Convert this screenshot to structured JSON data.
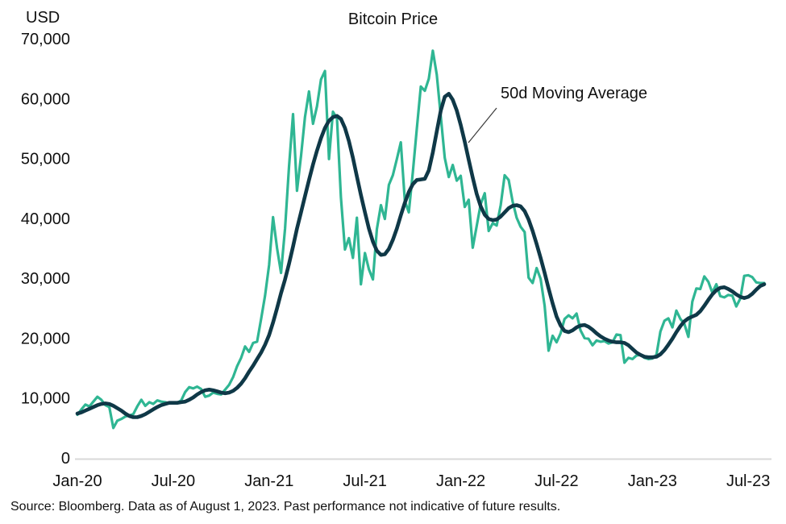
{
  "figure": {
    "title": "Bitcoin Price",
    "y_axis_unit": "USD",
    "annotation_label": "50d Moving Average",
    "source_note": "Source: Bloomberg. Data as of August 1, 2023. Past performance not indicative of future results."
  },
  "chart_data": {
    "type": "line",
    "title": "Bitcoin Price",
    "ylabel": "USD",
    "ylim": [
      0,
      70000
    ],
    "grid": false,
    "legend_position": "none (annotation with leader line instead)",
    "y_ticks": [
      0,
      10000,
      20000,
      30000,
      40000,
      50000,
      60000,
      70000
    ],
    "y_tick_labels": [
      "0",
      "10,000",
      "20,000",
      "30,000",
      "40,000",
      "50,000",
      "60,000",
      "70,000"
    ],
    "x_tick_labels": [
      "Jan-20",
      "Jul-20",
      "Jan-21",
      "Jul-21",
      "Jan-22",
      "Jul-22",
      "Jan-23",
      "Jul-23"
    ],
    "x_tick_months": [
      0,
      6,
      12,
      18,
      24,
      30,
      36,
      42
    ],
    "x_months_total": 43,
    "x_start": "Jan-2020",
    "x_end": "Aug-2023",
    "points_per_month": 4,
    "axis_color": "#d9d9d9",
    "text_color": "#111111",
    "annotation": {
      "text": "50d Moving Average",
      "points_to_series": "50d Moving Average",
      "points_to_region": "descending slope of moving-average line just after its Dec-2021 peak"
    },
    "source": "Source: Bloomberg. Data as of August 1, 2023. Past performance not indicative of future results.",
    "series": [
      {
        "name": "Bitcoin Price",
        "color": "#2FB693",
        "stroke_width": 3.2,
        "values_usd": [
          7200,
          8100,
          8900,
          8600,
          9400,
          10200,
          9700,
          8800,
          8500,
          5000,
          6200,
          6500,
          6900,
          7100,
          7300,
          8600,
          9700,
          8700,
          9300,
          9000,
          9600,
          9400,
          9300,
          9100,
          9200,
          9200,
          9600,
          11000,
          11800,
          11600,
          11900,
          11500,
          10200,
          10400,
          10900,
          10700,
          10600,
          11400,
          12200,
          13500,
          15300,
          16700,
          18600,
          17700,
          19200,
          19400,
          23200,
          27100,
          32200,
          40200,
          35000,
          30900,
          38300,
          48600,
          57400,
          44600,
          50400,
          56900,
          61200,
          55800,
          58700,
          63200,
          64600,
          49900,
          57800,
          56700,
          43500,
          34800,
          36700,
          33400,
          40100,
          29000,
          34200,
          31500,
          29800,
          38200,
          42200,
          39900,
          45600,
          47200,
          49900,
          52700,
          42900,
          41000,
          47700,
          54900,
          62000,
          61300,
          63300,
          68000,
          64000,
          57000,
          50100,
          46900,
          48900,
          46300,
          47100,
          41900,
          43100,
          35100,
          38700,
          42400,
          44200,
          37900,
          39200,
          38800,
          42200,
          47200,
          46400,
          42800,
          40100,
          38600,
          37700,
          30100,
          29200,
          31700,
          29900,
          25400,
          17900,
          20400,
          19300,
          20800,
          23200,
          23800,
          23300,
          24100,
          21300,
          20000,
          19900,
          18800,
          19600,
          19400,
          19500,
          19100,
          19300,
          20600,
          20500,
          15900,
          16700,
          16500,
          17100,
          17200,
          16700,
          16500,
          16600,
          17200,
          21100,
          22900,
          23300,
          21800,
          24600,
          23200,
          22400,
          20200,
          26100,
          28300,
          28200,
          30300,
          29400,
          27600,
          29000,
          27000,
          26800,
          27200,
          27100,
          25300,
          26600,
          30400,
          30500,
          30200,
          29300,
          29200,
          29200
        ]
      },
      {
        "name": "50d Moving Average",
        "color": "#0F3847",
        "stroke_width": 4.6,
        "values_usd": [
          7400,
          7600,
          7900,
          8200,
          8500,
          8800,
          9000,
          9100,
          9000,
          8700,
          8300,
          7900,
          7400,
          7000,
          6800,
          6800,
          7000,
          7300,
          7700,
          8100,
          8500,
          8800,
          9000,
          9200,
          9200,
          9200,
          9300,
          9400,
          9700,
          10100,
          10600,
          11000,
          11300,
          11400,
          11300,
          11100,
          10900,
          10800,
          10900,
          11200,
          11700,
          12400,
          13300,
          14400,
          15400,
          16500,
          17600,
          18900,
          20500,
          22600,
          25000,
          27500,
          29800,
          32400,
          35300,
          38300,
          41000,
          43700,
          46400,
          49000,
          51300,
          53400,
          55100,
          56300,
          56900,
          57100,
          56600,
          55100,
          52900,
          50100,
          47000,
          43900,
          41000,
          38300,
          36100,
          34600,
          33900,
          34000,
          34900,
          36400,
          38300,
          40500,
          42600,
          44400,
          45700,
          46400,
          46500,
          46600,
          48000,
          51000,
          54500,
          58000,
          60300,
          60800,
          59800,
          58000,
          55600,
          52800,
          49800,
          46800,
          44100,
          42000,
          40600,
          39900,
          39700,
          39800,
          40300,
          41000,
          41700,
          42100,
          42200,
          42000,
          41200,
          39800,
          37900,
          35700,
          33400,
          30900,
          28300,
          25800,
          23600,
          22100,
          21200,
          21000,
          21300,
          21800,
          22100,
          22200,
          21900,
          21400,
          20800,
          20300,
          19900,
          19600,
          19400,
          19300,
          19300,
          19200,
          18800,
          18200,
          17600,
          17200,
          16900,
          16800,
          16800,
          16900,
          17300,
          18000,
          18900,
          19900,
          21000,
          22000,
          22800,
          23300,
          23600,
          23900,
          24500,
          25400,
          26400,
          27300,
          28000,
          28400,
          28500,
          28200,
          27800,
          27300,
          26900,
          26700,
          26900,
          27400,
          28100,
          28700,
          29000
        ]
      }
    ]
  }
}
